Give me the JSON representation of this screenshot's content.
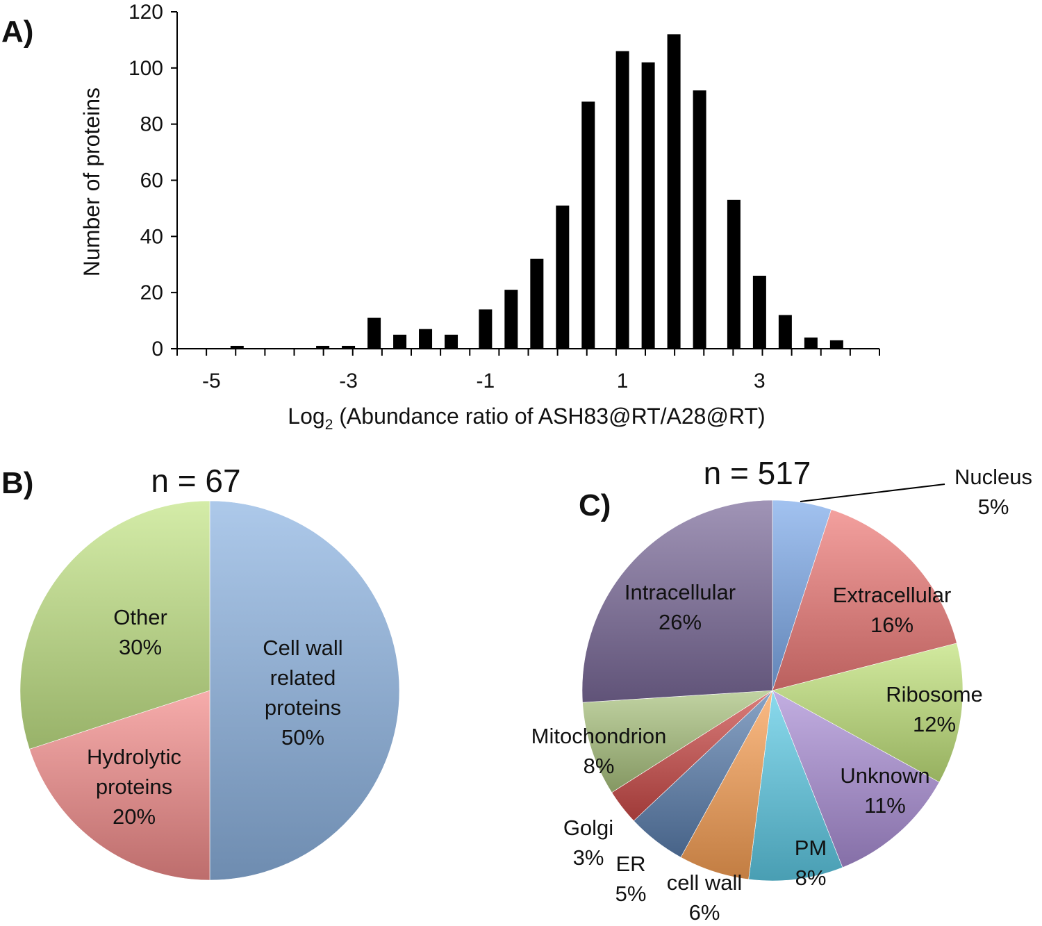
{
  "chart_data": [
    {
      "type": "bar",
      "panel": "A)",
      "xlabel_main": "Log",
      "xlabel_sub": "2",
      "xlabel_rest": " (Abundance ratio of ASH83@RT/A28@RT)",
      "ylabel": "Number of proteins",
      "ylim": [
        0,
        120
      ],
      "yticks": [
        "0",
        "20",
        "40",
        "60",
        "80",
        "100",
        "120"
      ],
      "xlim": [
        -5.5,
        4.75
      ],
      "xticks": [
        "-5",
        "-3",
        "-1",
        "1",
        "3"
      ],
      "x": [
        -4.625,
        -3.375,
        -3.0,
        -2.625,
        -2.25,
        -1.875,
        -1.5,
        -1.0,
        -0.625,
        -0.25,
        0.125,
        0.5,
        1.0,
        1.375,
        1.75,
        2.125,
        2.625,
        3.0,
        3.375,
        3.75,
        4.125
      ],
      "values": [
        1,
        1,
        1,
        11,
        5,
        7,
        5,
        14,
        21,
        32,
        51,
        88,
        106,
        102,
        112,
        92,
        53,
        26,
        12,
        4,
        3
      ],
      "color": "#000000"
    },
    {
      "type": "pie",
      "panel": "B)",
      "title": "n = 67",
      "slices": [
        {
          "label": "Cell wall related proteins",
          "lines": [
            "Cell wall",
            "related",
            "proteins"
          ],
          "pct_text": "50%",
          "value": 50,
          "color": "#8db4e2"
        },
        {
          "label": "Hydrolytic proteins",
          "lines": [
            "Hydrolytic",
            "proteins"
          ],
          "pct_text": "20%",
          "value": 20,
          "color": "#f28c8a"
        },
        {
          "label": "Other",
          "lines": [
            "Other"
          ],
          "pct_text": "30%",
          "value": 30,
          "color": "#c3e486"
        }
      ]
    },
    {
      "type": "pie",
      "panel": "C)",
      "title": "n = 517",
      "slices": [
        {
          "label": "Nucleus",
          "lines": [
            "Nucleus"
          ],
          "pct_text": "5%",
          "value": 5,
          "color": "#7eaaea"
        },
        {
          "label": "Extracellular",
          "lines": [
            "Extracellular"
          ],
          "pct_text": "16%",
          "value": 16,
          "color": "#ee7b78"
        },
        {
          "label": "Ribosome",
          "lines": [
            "Ribosome"
          ],
          "pct_text": "12%",
          "value": 12,
          "color": "#c0e27a"
        },
        {
          "label": "Unknown",
          "lines": [
            "Unknown"
          ],
          "pct_text": "11%",
          "value": 11,
          "color": "#aa8ed6"
        },
        {
          "label": "PM",
          "lines": [
            "PM"
          ],
          "pct_text": "8%",
          "value": 8,
          "color": "#5ecbe6"
        },
        {
          "label": "cell wall",
          "lines": [
            "cell wall"
          ],
          "pct_text": "6%",
          "value": 6,
          "color": "#f9a055"
        },
        {
          "label": "ER",
          "lines": [
            "ER"
          ],
          "pct_text": "5%",
          "value": 5,
          "color": "#5b7fae"
        },
        {
          "label": "Golgi",
          "lines": [
            "Golgi"
          ],
          "pct_text": "3%",
          "value": 3,
          "color": "#cc4a48"
        },
        {
          "label": "Mitochondrion",
          "lines": [
            "Mitochondrion"
          ],
          "pct_text": "8%",
          "value": 8,
          "color": "#a9c27e"
        },
        {
          "label": "Intracellular",
          "lines": [
            "Intracellular"
          ],
          "pct_text": "26%",
          "value": 26,
          "color": "#7b6a9a"
        }
      ]
    }
  ]
}
